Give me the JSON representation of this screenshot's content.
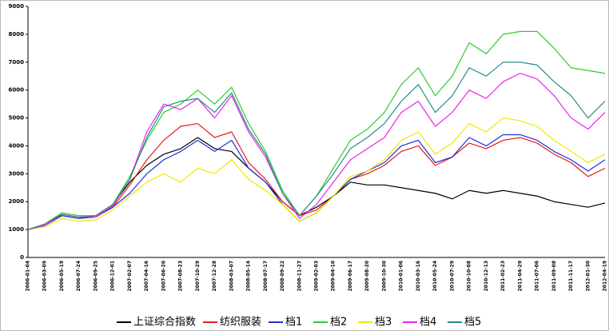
{
  "chart_data": {
    "type": "line",
    "categories": [
      "2006-01-04",
      "2006-03-09",
      "2006-05-19",
      "2006-07-24",
      "2006-09-25",
      "2006-12-01",
      "2007-02-07",
      "2007-04-16",
      "2007-06-20",
      "2007-08-23",
      "2007-10-29",
      "2007-12-28",
      "2008-03-07",
      "2008-05-14",
      "2008-07-17",
      "2008-09-22",
      "2008-11-27",
      "2009-02-03",
      "2009-04-10",
      "2009-06-17",
      "2009-08-20",
      "2009-10-30",
      "2010-01-06",
      "2010-03-16",
      "2010-05-24",
      "2010-07-29",
      "2010-10-08",
      "2010-12-13",
      "2011-02-23",
      "2011-04-29",
      "2011-07-06",
      "2011-09-08",
      "2011-11-17",
      "2012-01-30",
      "2012-04-19"
    ],
    "series": [
      {
        "name": "上证综合指数",
        "color": "#000000",
        "values": [
          1000,
          1150,
          1500,
          1400,
          1500,
          1900,
          2700,
          3300,
          3700,
          3900,
          4300,
          3900,
          3800,
          3200,
          2700,
          2000,
          1500,
          1800,
          2200,
          2700,
          2600,
          2600,
          2500,
          2400,
          2300,
          2100,
          2400,
          2300,
          2400,
          2300,
          2200,
          2000,
          1900,
          1800,
          1950
        ]
      },
      {
        "name": "纺织服装",
        "color": "#e41a1c",
        "values": [
          1000,
          1150,
          1500,
          1400,
          1450,
          1800,
          2600,
          3500,
          4200,
          4700,
          4800,
          4300,
          4500,
          3400,
          2800,
          2000,
          1500,
          1700,
          2200,
          2800,
          3000,
          3300,
          3800,
          4000,
          3300,
          3600,
          4100,
          3900,
          4200,
          4300,
          4100,
          3700,
          3400,
          2900,
          3200
        ]
      },
      {
        "name": "档1",
        "color": "#1f2fd8",
        "values": [
          1000,
          1150,
          1500,
          1400,
          1450,
          1800,
          2300,
          3000,
          3500,
          3800,
          4200,
          3800,
          4200,
          3200,
          2700,
          1900,
          1300,
          1600,
          2200,
          2800,
          3100,
          3400,
          4000,
          4200,
          3400,
          3600,
          4300,
          4000,
          4400,
          4400,
          4200,
          3800,
          3500,
          3100,
          3500
        ]
      },
      {
        "name": "档2",
        "color": "#2ecc2e",
        "values": [
          1000,
          1200,
          1600,
          1500,
          1500,
          1900,
          2900,
          4200,
          5200,
          5500,
          6000,
          5500,
          6100,
          4800,
          3800,
          2400,
          1500,
          2200,
          3200,
          4200,
          4600,
          5200,
          6200,
          6800,
          5800,
          6500,
          7700,
          7300,
          8000,
          8100,
          8100,
          7500,
          6800,
          6700,
          6600
        ]
      },
      {
        "name": "档3",
        "color": "#f0e800",
        "values": [
          1000,
          1100,
          1400,
          1300,
          1350,
          1700,
          2200,
          2700,
          3000,
          2700,
          3200,
          3000,
          3500,
          2800,
          2400,
          1900,
          1300,
          1600,
          2200,
          2900,
          3100,
          3500,
          4200,
          4500,
          3700,
          4100,
          4800,
          4500,
          5000,
          4900,
          4700,
          4200,
          3800,
          3400,
          3700
        ]
      },
      {
        "name": "档4",
        "color": "#ee22ee",
        "values": [
          1000,
          1150,
          1550,
          1450,
          1450,
          1850,
          2800,
          4500,
          5500,
          5300,
          5700,
          5000,
          5800,
          4500,
          3600,
          2300,
          1400,
          1900,
          2700,
          3500,
          3900,
          4300,
          5200,
          5600,
          4700,
          5200,
          6000,
          5700,
          6300,
          6600,
          6400,
          5800,
          5000,
          4600,
          5200
        ]
      },
      {
        "name": "档5",
        "color": "#2a8a8a",
        "values": [
          1000,
          1200,
          1550,
          1450,
          1500,
          1900,
          2800,
          4300,
          5400,
          5600,
          5700,
          5200,
          5900,
          4600,
          3700,
          2300,
          1500,
          2200,
          3000,
          3900,
          4300,
          4800,
          5600,
          6200,
          5200,
          5800,
          6800,
          6500,
          7000,
          7000,
          6900,
          6300,
          5800,
          5000,
          5600
        ]
      }
    ],
    "ylim": [
      0,
      9000
    ],
    "yticks": [
      0,
      1000,
      2000,
      3000,
      4000,
      5000,
      6000,
      7000,
      8000,
      9000
    ]
  }
}
